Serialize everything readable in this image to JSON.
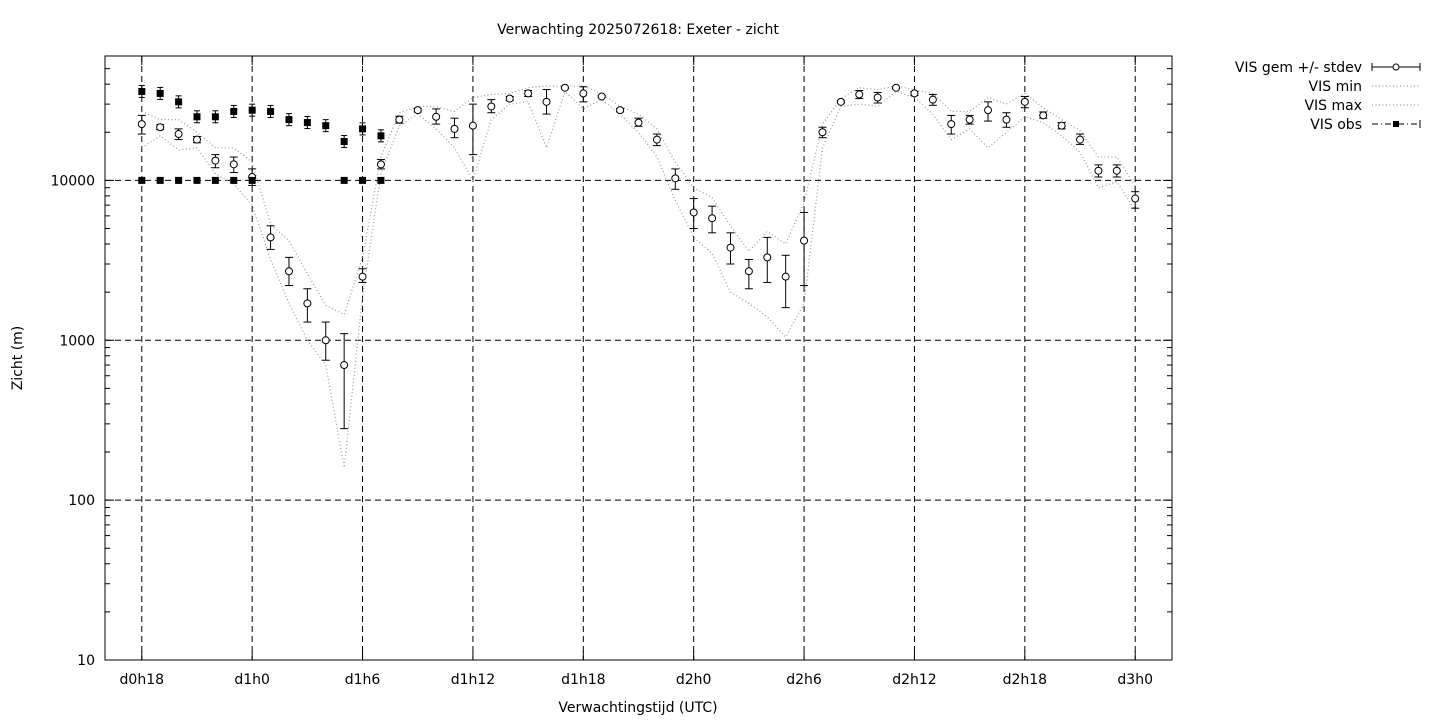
{
  "chart_data": {
    "type": "line",
    "title": "Verwachting 2025072618: Exeter - zicht",
    "xlabel": "Verwachtingstijd (UTC)",
    "ylabel": "Zicht (m)",
    "yscale": "log",
    "ylim": [
      10,
      60000
    ],
    "xlim": [
      -2,
      56
    ],
    "grid": true,
    "legend_position": "outside-top-right",
    "x_ticks": [
      {
        "x": 0,
        "label": "d0h18"
      },
      {
        "x": 6,
        "label": "d1h0"
      },
      {
        "x": 12,
        "label": "d1h6"
      },
      {
        "x": 18,
        "label": "d1h12"
      },
      {
        "x": 24,
        "label": "d1h18"
      },
      {
        "x": 30,
        "label": "d2h0"
      },
      {
        "x": 36,
        "label": "d2h6"
      },
      {
        "x": 42,
        "label": "d2h12"
      },
      {
        "x": 48,
        "label": "d2h18"
      },
      {
        "x": 54,
        "label": "d3h0"
      }
    ],
    "y_ticks": [
      {
        "y": 10,
        "label": "10"
      },
      {
        "y": 100,
        "label": "100"
      },
      {
        "y": 1000,
        "label": "1000"
      },
      {
        "y": 10000,
        "label": "10000"
      }
    ],
    "series": [
      {
        "name": "VIS gem +/- stdev",
        "style": "errorbar-open-circle",
        "color": "#000000",
        "x": [
          0,
          1,
          2,
          3,
          4,
          5,
          6,
          7,
          8,
          9,
          10,
          11,
          12,
          13,
          14,
          15,
          16,
          17,
          18,
          19,
          20,
          21,
          22,
          23,
          24,
          25,
          26,
          27,
          28,
          29,
          30,
          31,
          32,
          33,
          34,
          35,
          36,
          37,
          38,
          39,
          40,
          41,
          42,
          43,
          44,
          45,
          46,
          47,
          48,
          49,
          50,
          51,
          52,
          53,
          54
        ],
        "mean": [
          22500,
          21500,
          19500,
          18000,
          13300,
          12600,
          10500,
          4400,
          2700,
          1700,
          1000,
          700,
          2500,
          12600,
          24000,
          27500,
          25000,
          21000,
          22000,
          29000,
          32500,
          35000,
          31000,
          38000,
          35000,
          33500,
          27500,
          23000,
          18000,
          10300,
          6300,
          5800,
          3800,
          2700,
          3300,
          2500,
          4200,
          20000,
          31000,
          34500,
          33000,
          38000,
          35000,
          32000,
          22500,
          24000,
          27500,
          24000,
          31000,
          25500,
          22000,
          18000,
          11500,
          11500,
          7700
        ],
        "low": [
          19500,
          20800,
          18000,
          17200,
          12000,
          11200,
          9300,
          3700,
          2200,
          1300,
          750,
          280,
          2300,
          11800,
          22800,
          26800,
          22500,
          18500,
          14500,
          26500,
          31500,
          33500,
          26000,
          37500,
          31000,
          33000,
          26800,
          21800,
          16500,
          8800,
          5000,
          4700,
          3000,
          2100,
          2300,
          1600,
          2200,
          18500,
          30500,
          32500,
          30500,
          37500,
          34000,
          29500,
          19500,
          22500,
          23500,
          21500,
          28500,
          24500,
          21000,
          16800,
          10500,
          10500,
          6700
        ],
        "high": [
          25500,
          22300,
          21000,
          18800,
          14500,
          14000,
          11800,
          5200,
          3300,
          2100,
          1300,
          1100,
          2800,
          13500,
          25200,
          28200,
          28000,
          24500,
          30000,
          32000,
          33500,
          36500,
          37000,
          38500,
          38500,
          34000,
          28200,
          24500,
          19500,
          11800,
          7700,
          6900,
          4700,
          3200,
          4400,
          3400,
          6300,
          21500,
          31500,
          36500,
          35500,
          38500,
          36000,
          34500,
          25500,
          25500,
          31000,
          26500,
          33500,
          26800,
          23000,
          19500,
          12500,
          12500,
          8500
        ]
      },
      {
        "name": "VIS min",
        "style": "dotted",
        "color": "#999999",
        "x": [
          0,
          1,
          2,
          3,
          4,
          5,
          6,
          7,
          8,
          9,
          10,
          11,
          12,
          13,
          14,
          15,
          16,
          17,
          18,
          19,
          20,
          21,
          22,
          23,
          24,
          25,
          26,
          27,
          28,
          29,
          30,
          31,
          32,
          33,
          34,
          35,
          36,
          37,
          38,
          39,
          40,
          41,
          42,
          43,
          44,
          45,
          46,
          47,
          48,
          49,
          50,
          51,
          52,
          53,
          54
        ],
        "values": [
          16000,
          19000,
          15500,
          16000,
          11000,
          9500,
          7000,
          3200,
          1700,
          1000,
          700,
          160,
          1900,
          11000,
          22000,
          26000,
          21000,
          16000,
          10000,
          24000,
          30000,
          31000,
          16000,
          36000,
          28000,
          32000,
          26000,
          20000,
          14000,
          7500,
          4400,
          3500,
          2000,
          1700,
          1400,
          1050,
          1700,
          16000,
          29000,
          30000,
          29000,
          36000,
          33000,
          26000,
          18000,
          21000,
          16000,
          20000,
          25000,
          23000,
          19000,
          15000,
          9000,
          9800,
          6500
        ]
      },
      {
        "name": "VIS max",
        "style": "dotted",
        "color": "#999999",
        "x": [
          0,
          1,
          2,
          3,
          4,
          5,
          6,
          7,
          8,
          9,
          10,
          11,
          12,
          13,
          14,
          15,
          16,
          17,
          18,
          19,
          20,
          21,
          22,
          23,
          24,
          25,
          26,
          27,
          28,
          29,
          30,
          31,
          32,
          33,
          34,
          35,
          36,
          37,
          38,
          39,
          40,
          41,
          42,
          43,
          44,
          45,
          46,
          47,
          48,
          49,
          50,
          51,
          52,
          53,
          54
        ],
        "values": [
          27000,
          24000,
          24000,
          20000,
          16000,
          16000,
          13000,
          5300,
          4200,
          2600,
          1650,
          1450,
          3300,
          14000,
          26500,
          29000,
          29000,
          27000,
          33000,
          34500,
          35000,
          38000,
          39000,
          39000,
          39000,
          35000,
          29000,
          26000,
          21000,
          13000,
          9000,
          7800,
          5200,
          3600,
          4800,
          4000,
          7300,
          22500,
          32500,
          38000,
          37000,
          39000,
          37000,
          35000,
          27000,
          27000,
          33000,
          30000,
          35000,
          28500,
          24000,
          20500,
          14000,
          14000,
          9200
        ]
      },
      {
        "name": "VIS obs",
        "style": "filled-square-dashdot",
        "color": "#000000",
        "x": [
          0,
          1,
          2,
          3,
          4,
          5,
          6,
          7,
          8,
          9,
          10,
          11,
          12,
          13
        ],
        "values": [
          36000,
          35000,
          31000,
          25000,
          25000,
          27000,
          27500,
          27000,
          24000,
          23000,
          22000,
          17500,
          21000,
          19000
        ],
        "low_values": [
          10000,
          10000,
          10000,
          10000,
          10000,
          10000,
          10000,
          null,
          null,
          null,
          null,
          10000,
          10000,
          10000
        ]
      }
    ]
  }
}
